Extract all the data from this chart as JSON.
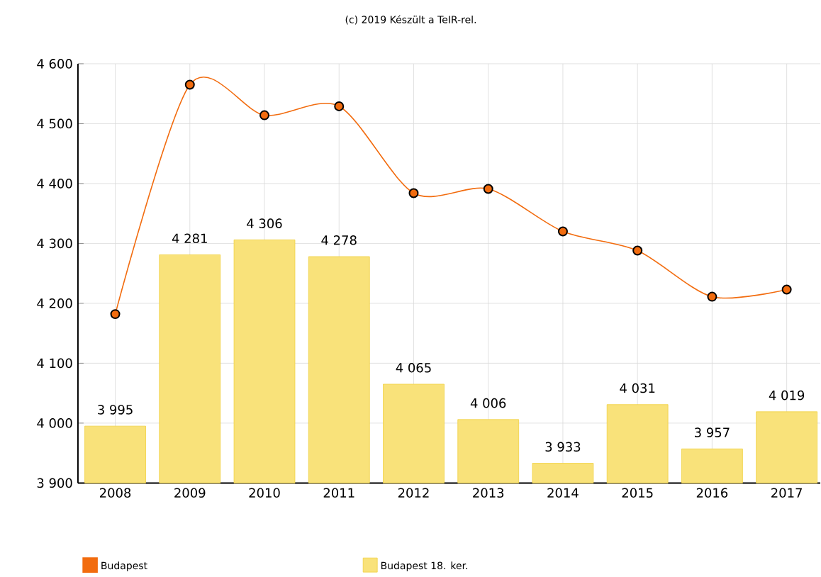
{
  "chart_data": {
    "type": "bar",
    "title": "(c) 2019 Készült a TeIR-rel.",
    "categories": [
      "2008",
      "2009",
      "2010",
      "2011",
      "2012",
      "2013",
      "2014",
      "2015",
      "2016",
      "2017"
    ],
    "series": [
      {
        "name": "Budapest",
        "type": "line",
        "color": "#f26c0f",
        "marker": "circle",
        "values": [
          4182,
          4565,
          4514,
          4529,
          4384,
          4391,
          4320,
          4288,
          4211,
          4223
        ]
      },
      {
        "name": "Budapest 18. ker.",
        "color": "#f9e27a",
        "values": [
          3995,
          4281,
          4306,
          4278,
          4065,
          4006,
          3933,
          4031,
          3957,
          4019
        ],
        "value_labels": [
          "3 995",
          "4 281",
          "4 306",
          "4 278",
          "4 065",
          "4 006",
          "3 933",
          "4 031",
          "3 957",
          "4 019"
        ]
      }
    ],
    "ylim": [
      3900,
      4600
    ],
    "yticks": [
      {
        "value": 3900,
        "label": "3 900"
      },
      {
        "value": 4000,
        "label": "4 000"
      },
      {
        "value": 4100,
        "label": "4 100"
      },
      {
        "value": 4200,
        "label": "4 200"
      },
      {
        "value": 4300,
        "label": "4 300"
      },
      {
        "value": 4400,
        "label": "4 400"
      },
      {
        "value": 4500,
        "label": "4 500"
      },
      {
        "value": 4600,
        "label": "4 600"
      }
    ],
    "grid": true,
    "legend": "bottom left"
  }
}
